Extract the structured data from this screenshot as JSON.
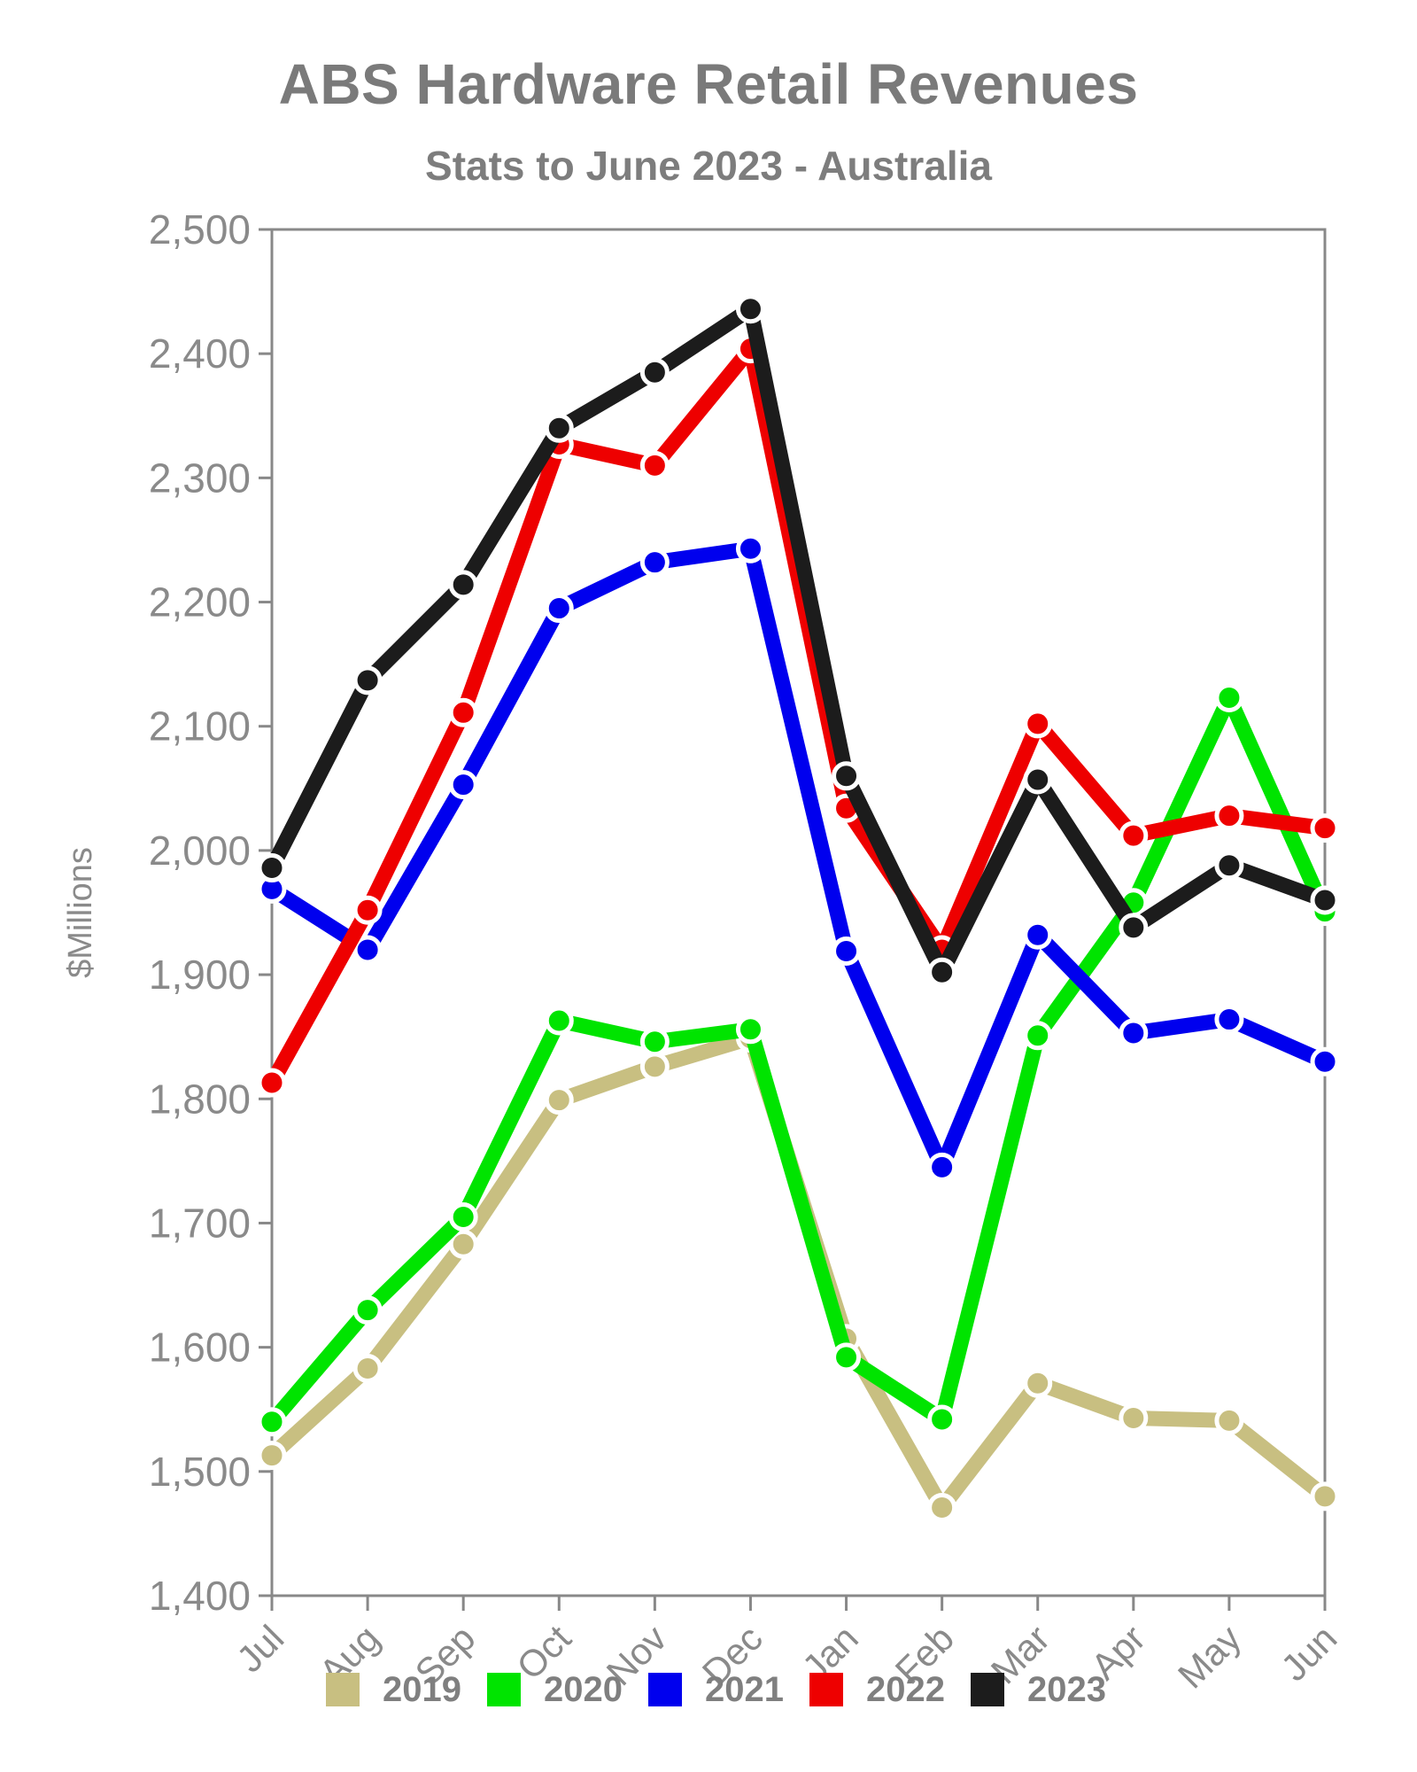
{
  "chart_data": {
    "type": "line",
    "title": "ABS Hardware Retail Revenues",
    "subtitle": "Stats to June 2023 - Australia",
    "ylabel": "$Millions",
    "xlabel": "",
    "categories": [
      "Jul",
      "Aug",
      "Sep",
      "Oct",
      "Nov",
      "Dec",
      "Jan",
      "Feb",
      "Mar",
      "Apr",
      "May",
      "Jun"
    ],
    "series": [
      {
        "name": "2019",
        "color": "#c8bf81",
        "values": [
          1513,
          1583,
          1683,
          1799,
          1826,
          1849,
          1607,
          1471,
          1571,
          1543,
          1541,
          1480
        ]
      },
      {
        "name": "2020",
        "color": "#00e400",
        "values": [
          1540,
          1630,
          1705,
          1863,
          1846,
          1856,
          1592,
          1542,
          1851,
          1958,
          2123,
          1951
        ]
      },
      {
        "name": "2021",
        "color": "#0000ee",
        "values": [
          1969,
          1920,
          2053,
          2195,
          2232,
          2243,
          1919,
          1745,
          1932,
          1853,
          1864,
          1830
        ]
      },
      {
        "name": "2022",
        "color": "#ee0000",
        "values": [
          1813,
          1952,
          2111,
          2327,
          2310,
          2404,
          2034,
          1920,
          2102,
          2012,
          2028,
          2018
        ]
      },
      {
        "name": "2023",
        "color": "#1c1c1c",
        "values": [
          1986,
          2137,
          2214,
          2340,
          2385,
          2436,
          2060,
          1902,
          2057,
          1938,
          1988,
          1960
        ]
      }
    ],
    "ylim": [
      1400,
      2500
    ],
    "ytick_step": 100,
    "grid": false,
    "legend_position": "bottom",
    "axis_color": "#888888",
    "tick_label_color": "#8a8a8a"
  }
}
